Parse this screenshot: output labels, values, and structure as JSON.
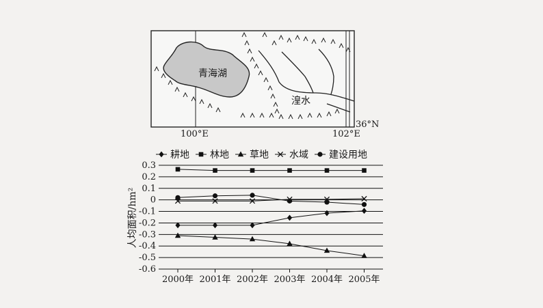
{
  "map": {
    "lake_label": "青海湖",
    "river_label": "湟水",
    "lon_left": "100°E",
    "lon_right": "102°E",
    "lat_label": "36°N",
    "colors": {
      "lake": "#c8c8c8",
      "frame": "#222222",
      "mountain": "#222222"
    }
  },
  "chart_data": {
    "type": "line",
    "ylabel": "人均面积/hm²",
    "categories": [
      "2000年",
      "2001年",
      "2002年",
      "2003年",
      "2004年",
      "2005年"
    ],
    "ylim": [
      -0.6,
      0.3
    ],
    "yticks": [
      "0.3",
      "0.2",
      "0.1",
      "0",
      "-0.1",
      "-0.2",
      "-0.3",
      "-0.4",
      "-0.5",
      "-0.6"
    ],
    "grid": "horizontal",
    "legend_position": "top",
    "series": [
      {
        "name": "耕地",
        "marker": "diamond",
        "values": [
          -0.22,
          -0.22,
          -0.22,
          -0.155,
          -0.115,
          -0.095
        ]
      },
      {
        "name": "林地",
        "marker": "square",
        "values": [
          0.265,
          0.255,
          0.255,
          0.255,
          0.255,
          0.255
        ]
      },
      {
        "name": "草地",
        "marker": "triangle",
        "values": [
          -0.31,
          -0.325,
          -0.34,
          -0.38,
          -0.44,
          -0.485
        ]
      },
      {
        "name": "水域",
        "marker": "x",
        "values": [
          -0.01,
          -0.01,
          -0.01,
          0.005,
          0.005,
          0.01
        ]
      },
      {
        "name": "建设用地",
        "marker": "circle",
        "values": [
          0.02,
          0.035,
          0.04,
          -0.01,
          -0.02,
          -0.04
        ]
      }
    ]
  }
}
